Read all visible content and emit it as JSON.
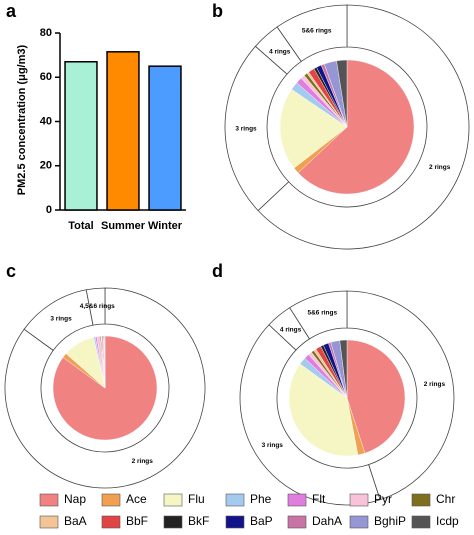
{
  "chart_data": [
    {
      "type": "bar",
      "panel": "a",
      "y_label": "PM2.5 concentration (μg/m3)",
      "categories": [
        "Total",
        "Summer",
        "Winter"
      ],
      "values": [
        67,
        71.5,
        65
      ],
      "colors": [
        "#a8f0d6",
        "#ff8a00",
        "#4c9bff"
      ],
      "ylim": [
        0,
        80
      ],
      "yticks": [
        0,
        20,
        40,
        60,
        80
      ]
    },
    {
      "type": "pie",
      "panel": "b",
      "categories": [
        "Nap",
        "Ace",
        "Flu",
        "Phe",
        "Flt",
        "Pyr",
        "Chr",
        "BaA",
        "BbF",
        "BkF",
        "BaP",
        "DahA",
        "BghiP",
        "Icdp"
      ],
      "colors": [
        "#f08282",
        "#f0a050",
        "#f6f6c4",
        "#a4caf0",
        "#e07ee0",
        "#f8c2d8",
        "#7f6e1e",
        "#f2c496",
        "#e04444",
        "#222222",
        "#12128a",
        "#c874a6",
        "#9696d4",
        "#545454"
      ],
      "values": [
        63,
        1.5,
        20,
        2,
        1.5,
        1,
        0.8,
        0.5,
        1.5,
        0.7,
        1.2,
        0.8,
        3,
        2.5
      ],
      "outer_ring": {
        "labels": [
          "2 rings",
          "3 rings",
          "4 rings",
          "5&6 rings"
        ],
        "values": [
          63,
          23.5,
          3.8,
          9.7
        ]
      }
    },
    {
      "type": "pie",
      "panel": "c",
      "categories": [
        "Nap",
        "Ace",
        "Flu",
        "Phe",
        "Flt",
        "Pyr",
        "Chr",
        "BaA",
        "BbF",
        "BkF",
        "BaP",
        "DahA",
        "BghiP",
        "Icdp"
      ],
      "colors": [
        "#f08282",
        "#f0a050",
        "#f6f6c4",
        "#a4caf0",
        "#e07ee0",
        "#f8c2d8",
        "#7f6e1e",
        "#f2c496",
        "#e04444",
        "#222222",
        "#12128a",
        "#c874a6",
        "#9696d4",
        "#545454"
      ],
      "values": [
        85,
        1.5,
        10,
        0.5,
        0.5,
        1,
        0.3,
        0.2,
        0.3,
        0.1,
        0.2,
        0.1,
        0.2,
        0.1
      ],
      "outer_ring": {
        "labels": [
          "2 rings",
          "3 rings",
          "4,5&6 rings"
        ],
        "values": [
          85,
          12,
          3
        ]
      }
    },
    {
      "type": "pie",
      "panel": "d",
      "categories": [
        "Nap",
        "Ace",
        "Flu",
        "Phe",
        "Flt",
        "Pyr",
        "Chr",
        "BaA",
        "BbF",
        "BkF",
        "BaP",
        "DahA",
        "BghiP",
        "Icdp"
      ],
      "colors": [
        "#f08282",
        "#f0a050",
        "#f6f6c4",
        "#a4caf0",
        "#e07ee0",
        "#f8c2d8",
        "#7f6e1e",
        "#f2c496",
        "#e04444",
        "#222222",
        "#12128a",
        "#c874a6",
        "#9696d4",
        "#545454"
      ],
      "values": [
        45,
        2,
        38,
        2,
        1.5,
        1,
        0.8,
        0.7,
        1.5,
        0.8,
        1.5,
        0.7,
        2.5,
        2
      ],
      "outer_ring": {
        "labels": [
          "2 rings",
          "3 rings",
          "4 rings",
          "5&6 rings"
        ],
        "values": [
          45,
          42,
          4,
          9
        ]
      }
    }
  ]
}
